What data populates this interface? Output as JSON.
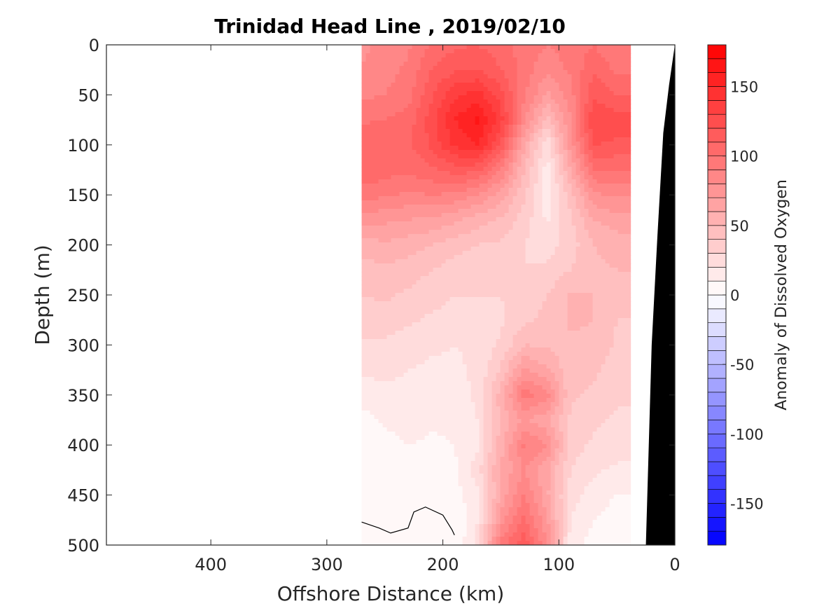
{
  "chart_data": {
    "type": "heatmap",
    "title": "Trinidad Head Line , 2019/02/10",
    "xlabel": "Offshore Distance (km)",
    "ylabel": "Depth (m)",
    "xlim": [
      490,
      0
    ],
    "ylim": [
      0,
      500
    ],
    "x_reversed": true,
    "y_reversed": true,
    "x_ticks": [
      400,
      300,
      200,
      100,
      0
    ],
    "x_tick_labels": [
      "400",
      "300",
      "200",
      "100",
      "0"
    ],
    "y_ticks": [
      0,
      50,
      100,
      150,
      200,
      250,
      300,
      350,
      400,
      450,
      500
    ],
    "y_tick_labels": [
      "0",
      "50",
      "100",
      "150",
      "200",
      "250",
      "300",
      "350",
      "400",
      "450",
      "500"
    ],
    "colorbar": {
      "label": "Anomaly of Dissolved Oxygen",
      "range": [
        -180,
        180
      ],
      "ticks": [
        -150,
        -100,
        -50,
        0,
        50,
        100,
        150
      ],
      "tick_labels": [
        "-150",
        "-100",
        "-50",
        "0",
        "50",
        "100",
        "150"
      ],
      "levels": 36,
      "colormap": "blue-white-red",
      "low_color": "#0000ff",
      "mid_color": "#ffffff",
      "high_color": "#ff0000"
    },
    "data_extent": {
      "x": [
        270,
        40
      ],
      "depth": [
        0,
        500
      ]
    },
    "x": [
      270,
      250,
      230,
      210,
      190,
      170,
      150,
      130,
      110,
      90,
      70,
      50
    ],
    "depth": [
      0,
      25,
      50,
      75,
      100,
      125,
      150,
      175,
      200,
      225,
      250,
      275,
      300,
      325,
      350,
      375,
      400,
      425,
      450,
      475,
      500
    ],
    "values": [
      [
        78,
        82,
        88,
        102,
        108,
        110,
        105,
        95,
        90,
        95,
        100,
        90
      ],
      [
        80,
        86,
        92,
        110,
        118,
        120,
        110,
        95,
        82,
        92,
        108,
        98
      ],
      [
        88,
        90,
        96,
        118,
        138,
        145,
        125,
        92,
        68,
        85,
        118,
        110
      ],
      [
        98,
        100,
        104,
        125,
        150,
        162,
        135,
        82,
        45,
        80,
        130,
        125
      ],
      [
        110,
        108,
        108,
        122,
        142,
        150,
        120,
        62,
        22,
        75,
        120,
        118
      ],
      [
        108,
        105,
        102,
        108,
        115,
        112,
        90,
        50,
        15,
        60,
        100,
        100
      ],
      [
        95,
        92,
        88,
        90,
        88,
        80,
        65,
        42,
        15,
        45,
        78,
        82
      ],
      [
        75,
        72,
        70,
        68,
        62,
        55,
        48,
        35,
        18,
        38,
        60,
        65
      ],
      [
        55,
        58,
        55,
        50,
        45,
        40,
        38,
        30,
        25,
        35,
        50,
        55
      ],
      [
        45,
        48,
        45,
        40,
        35,
        32,
        32,
        30,
        32,
        40,
        48,
        50
      ],
      [
        40,
        42,
        38,
        35,
        30,
        30,
        30,
        35,
        40,
        52,
        50,
        45
      ],
      [
        35,
        35,
        32,
        28,
        25,
        25,
        28,
        38,
        42,
        52,
        50,
        40
      ],
      [
        28,
        28,
        25,
        22,
        20,
        22,
        32,
        50,
        48,
        48,
        48,
        38
      ],
      [
        22,
        22,
        20,
        18,
        18,
        22,
        42,
        72,
        62,
        42,
        42,
        35
      ],
      [
        15,
        18,
        18,
        15,
        15,
        22,
        55,
        95,
        85,
        42,
        38,
        32
      ],
      [
        5,
        12,
        15,
        12,
        12,
        20,
        52,
        72,
        62,
        38,
        32,
        28
      ],
      [
        0,
        5,
        10,
        8,
        10,
        18,
        55,
        92,
        80,
        35,
        28,
        25
      ],
      [
        0,
        0,
        5,
        5,
        8,
        25,
        62,
        80,
        62,
        30,
        22,
        18
      ],
      [
        0,
        0,
        0,
        0,
        5,
        18,
        62,
        92,
        62,
        25,
        15,
        10
      ],
      [
        0,
        0,
        0,
        0,
        0,
        20,
        75,
        102,
        72,
        20,
        10,
        5
      ],
      [
        0,
        0,
        0,
        0,
        0,
        25,
        95,
        118,
        80,
        15,
        5,
        0
      ]
    ],
    "zero_contour": [
      [
        270,
        477
      ],
      [
        255,
        483
      ],
      [
        245,
        488
      ],
      [
        230,
        483
      ],
      [
        225,
        467
      ],
      [
        215,
        462
      ],
      [
        200,
        470
      ],
      [
        192,
        485
      ],
      [
        190,
        490
      ]
    ],
    "bathymetry": [
      [
        0,
        0
      ],
      [
        5,
        40
      ],
      [
        10,
        88
      ],
      [
        15,
        190
      ],
      [
        20,
        300
      ],
      [
        25,
        500
      ]
    ],
    "grid": false,
    "legend": "none"
  }
}
